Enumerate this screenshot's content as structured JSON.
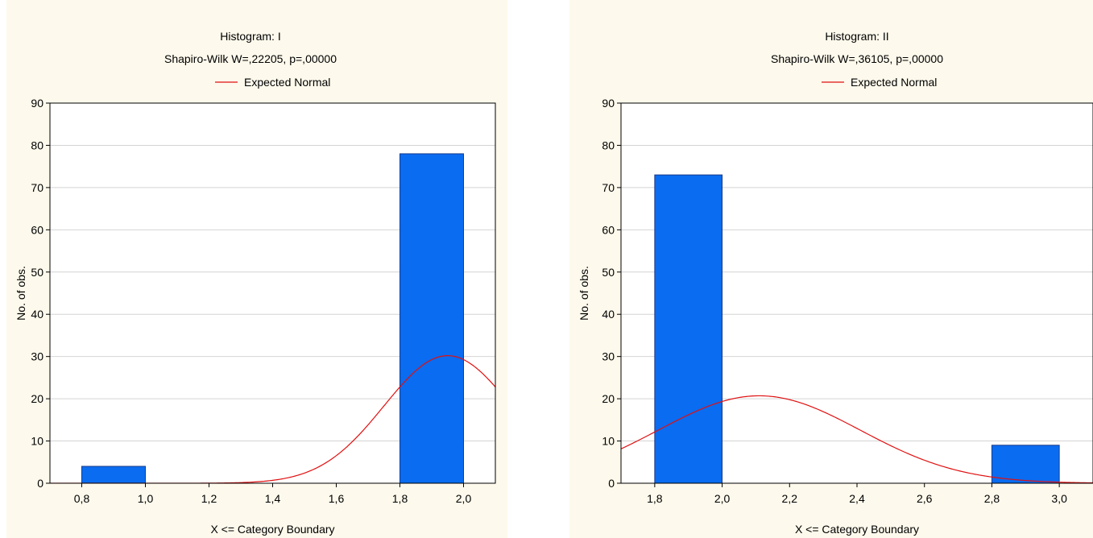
{
  "chart_data": [
    {
      "type": "bar",
      "title": "Histogram: I",
      "subtitle": "Shapiro-Wilk W=,22205, p=,00000",
      "legend": "Expected Normal",
      "legend_placement": "top-center",
      "xlabel": "X <= Category Boundary",
      "ylabel": "No. of obs.",
      "xlim": [
        0.7,
        2.1
      ],
      "ylim": [
        0,
        90
      ],
      "grid": true,
      "x_ticks": [
        0.8,
        1.0,
        1.2,
        1.4,
        1.6,
        1.8,
        2.0
      ],
      "x_tick_labels": [
        "0,8",
        "1,0",
        "1,2",
        "1,4",
        "1,6",
        "1,8",
        "2,0"
      ],
      "y_ticks": [
        0,
        10,
        20,
        30,
        40,
        50,
        60,
        70,
        80,
        90
      ],
      "bins": [
        {
          "x0": 0.8,
          "x1": 1.0,
          "value": 4
        },
        {
          "x0": 1.8,
          "x1": 2.0,
          "value": 78
        }
      ],
      "normal_curve": {
        "peak_x": 1.95,
        "peak_y": 30.2,
        "sd": 0.2
      },
      "colors": {
        "bar": "#0a6cf0",
        "bar_stroke": "#1a3a8a",
        "curve": "#e01010",
        "background": "#fdf9ec",
        "plot": "#ffffff"
      }
    },
    {
      "type": "bar",
      "title": "Histogram: II",
      "subtitle": "Shapiro-Wilk W=,36105, p=,00000",
      "legend": "Expected Normal",
      "legend_placement": "top-center",
      "xlabel": "X <= Category Boundary",
      "ylabel": "No. of obs.",
      "xlim": [
        1.7,
        3.1
      ],
      "ylim": [
        0,
        90
      ],
      "grid": true,
      "x_ticks": [
        1.8,
        2.0,
        2.2,
        2.4,
        2.6,
        2.8,
        3.0
      ],
      "x_tick_labels": [
        "1,8",
        "2,0",
        "2,2",
        "2,4",
        "2,6",
        "2,8",
        "3,0"
      ],
      "y_ticks": [
        0,
        10,
        20,
        30,
        40,
        50,
        60,
        70,
        80,
        90
      ],
      "bins": [
        {
          "x0": 1.8,
          "x1": 2.0,
          "value": 73
        },
        {
          "x0": 2.8,
          "x1": 3.0,
          "value": 9
        }
      ],
      "normal_curve": {
        "peak_x": 2.11,
        "peak_y": 20.7,
        "sd": 0.3
      },
      "colors": {
        "bar": "#0a6cf0",
        "bar_stroke": "#1a3a8a",
        "curve": "#e01010",
        "background": "#fdf9ec",
        "plot": "#ffffff"
      }
    }
  ]
}
